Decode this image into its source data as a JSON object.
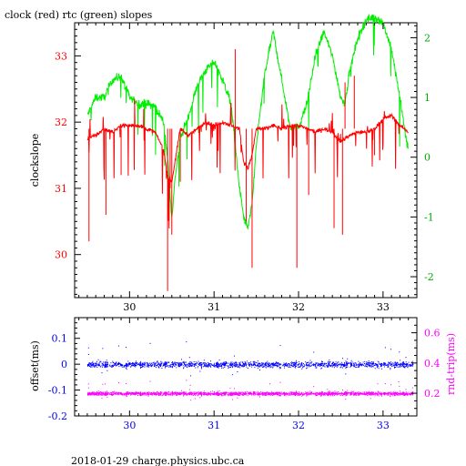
{
  "title": "clock (red) rtc (green) slopes",
  "footer": "2018-01-29 charge.physics.ubc.ca",
  "colors": {
    "clock": "#ff0000",
    "rtc": "#00ee00",
    "offset": "#0000ff",
    "rndtrip": "#ff00ff",
    "frame": "#000000",
    "background": "#ffffff"
  },
  "chart_data": [
    {
      "type": "line",
      "panel": "slopes",
      "title": "clock (red) rtc (green) slopes",
      "xlabel": "",
      "ylabel": "clockslope",
      "y2label": "",
      "xlim": [
        29.35,
        33.4
      ],
      "ylim": [
        29.35,
        33.5
      ],
      "y2lim": [
        -2.35,
        2.25
      ],
      "x_ticks": [
        "30",
        "31",
        "32",
        "33"
      ],
      "y_ticks": [
        "30",
        "31",
        "32",
        "33"
      ],
      "y2_ticks": [
        "-2",
        "-1",
        "0",
        "1",
        "2"
      ],
      "grid": false,
      "series": [
        {
          "name": "clock",
          "axis": "left",
          "color": "#ff0000",
          "x": [
            29.5,
            29.6,
            29.7,
            29.8,
            29.9,
            30.0,
            30.1,
            30.2,
            30.3,
            30.4,
            30.45,
            30.5,
            30.6,
            30.7,
            30.8,
            30.9,
            31.0,
            31.1,
            31.2,
            31.3,
            31.35,
            31.4,
            31.45,
            31.5,
            31.6,
            31.7,
            31.8,
            31.9,
            32.0,
            32.1,
            32.2,
            32.3,
            32.4,
            32.5,
            32.6,
            32.7,
            32.8,
            32.9,
            33.0,
            33.1,
            33.2,
            33.3
          ],
          "values": [
            31.75,
            31.8,
            31.9,
            31.85,
            31.95,
            31.95,
            31.95,
            31.9,
            31.85,
            31.6,
            31.2,
            31.1,
            31.9,
            31.8,
            31.9,
            32.0,
            31.95,
            32.0,
            31.95,
            31.9,
            31.4,
            31.3,
            31.5,
            31.9,
            31.9,
            31.95,
            31.9,
            31.95,
            31.95,
            31.9,
            31.85,
            31.9,
            31.85,
            31.7,
            31.8,
            31.85,
            31.85,
            31.9,
            32.05,
            32.1,
            31.95,
            31.85
          ]
        },
        {
          "name": "rtc",
          "axis": "right",
          "color": "#00ee00",
          "x": [
            29.5,
            29.6,
            29.7,
            29.8,
            29.9,
            30.0,
            30.1,
            30.2,
            30.3,
            30.4,
            30.45,
            30.5,
            30.55,
            30.6,
            30.7,
            30.8,
            30.9,
            31.0,
            31.1,
            31.2,
            31.3,
            31.35,
            31.4,
            31.45,
            31.5,
            31.6,
            31.7,
            31.8,
            31.9,
            32.0,
            32.1,
            32.2,
            32.3,
            32.4,
            32.5,
            32.55,
            32.6,
            32.7,
            32.8,
            32.9,
            33.0,
            33.1,
            33.2,
            33.25,
            33.3
          ],
          "values": [
            0.7,
            1.0,
            1.0,
            1.3,
            1.35,
            1.0,
            0.9,
            0.9,
            0.85,
            0.6,
            0.0,
            -1.0,
            -0.2,
            0.3,
            0.7,
            1.2,
            1.45,
            1.6,
            1.3,
            0.9,
            -0.5,
            -1.0,
            -1.2,
            -0.8,
            0.2,
            1.4,
            2.1,
            1.3,
            0.5,
            0.5,
            0.9,
            1.7,
            2.1,
            1.7,
            1.0,
            0.9,
            1.4,
            2.0,
            2.3,
            2.35,
            2.25,
            1.8,
            1.0,
            0.5,
            0.1
          ]
        }
      ]
    },
    {
      "type": "scatter",
      "panel": "offsets",
      "xlabel": "",
      "ylabel": "offset(ms)",
      "y2label": "rnd-trip(ms)",
      "xlim": [
        29.35,
        33.4
      ],
      "ylim": [
        -0.2,
        0.18
      ],
      "y2lim": [
        0.05,
        0.7
      ],
      "x_ticks": [
        "30",
        "31",
        "32",
        "33"
      ],
      "y_ticks": [
        "0.1",
        "0",
        "-0.1",
        "-0.2"
      ],
      "y2_ticks": [
        "0.6",
        "0.4",
        "0.2"
      ],
      "grid": false,
      "series": [
        {
          "name": "offset",
          "axis": "left",
          "color": "#0000ff",
          "x_range": [
            29.5,
            33.35
          ],
          "center": 0.0,
          "spread": 0.02
        },
        {
          "name": "rnd-trip",
          "axis": "right",
          "color": "#ff00ff",
          "x_range": [
            29.5,
            33.35
          ],
          "center": 0.2,
          "spread": 0.02
        }
      ]
    }
  ]
}
